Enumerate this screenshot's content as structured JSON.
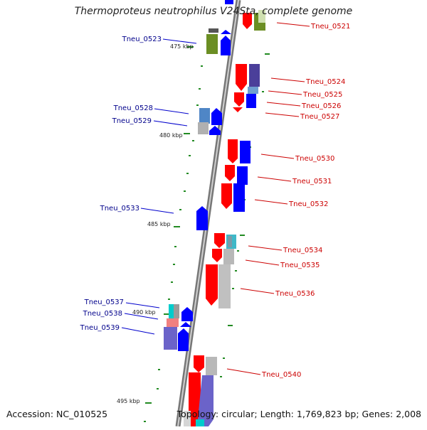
{
  "title": "Thermoproteus neutrophilus V24Sta, complete genome",
  "footer": {
    "accession": "Accession: NC_010525",
    "topology": "Topology: circular; Length: 1,769,823 bp; Genes: 2,008"
  },
  "scale_labels": [
    "475 kbp",
    "480 kbp",
    "485 kbp",
    "490 kbp",
    "495 kbp"
  ],
  "colors": {
    "forward": "#ff0000",
    "reverse": "#0000ff",
    "olive": "#6b8e23",
    "indigo": "#4b3f9a",
    "steel": "#4f86c6",
    "cyan": "#00cccc",
    "grey": "#b0b0b0",
    "tick": "#228b22",
    "left_label": "#00008b",
    "right_label": "#cc0000"
  },
  "genes_left": [
    {
      "name": "Tneu_0523"
    },
    {
      "name": "Tneu_0528"
    },
    {
      "name": "Tneu_0529"
    },
    {
      "name": "Tneu_0533"
    },
    {
      "name": "Tneu_0537"
    },
    {
      "name": "Tneu_0538"
    },
    {
      "name": "Tneu_0539"
    }
  ],
  "genes_right": [
    {
      "name": "Tneu_0521"
    },
    {
      "name": "Tneu_0524"
    },
    {
      "name": "Tneu_0525"
    },
    {
      "name": "Tneu_0526"
    },
    {
      "name": "Tneu_0527"
    },
    {
      "name": "Tneu_0530"
    },
    {
      "name": "Tneu_0531"
    },
    {
      "name": "Tneu_0532"
    },
    {
      "name": "Tneu_0534"
    },
    {
      "name": "Tneu_0535"
    },
    {
      "name": "Tneu_0536"
    },
    {
      "name": "Tneu_0540"
    }
  ]
}
